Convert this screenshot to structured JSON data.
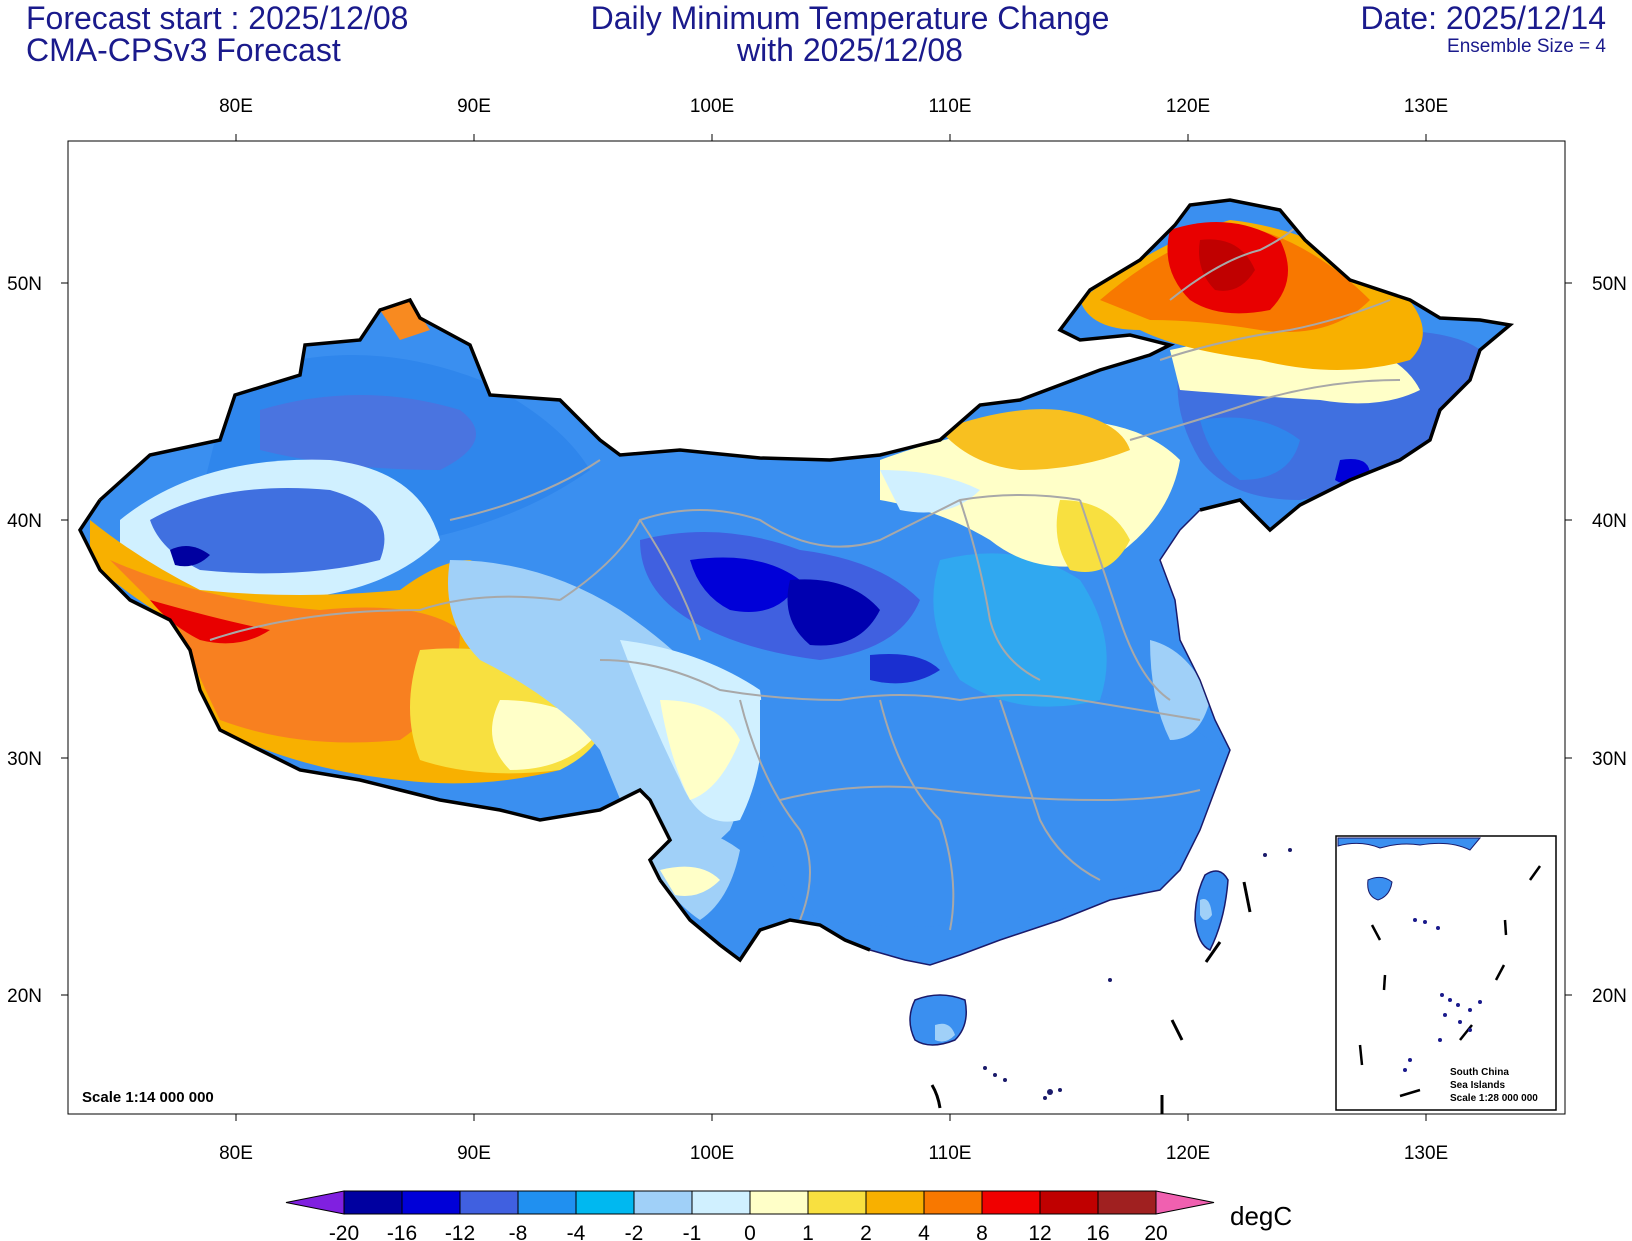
{
  "header": {
    "forecast_start": "Forecast start : 2025/12/08",
    "model": "CMA-CPSv3 Forecast",
    "title_line1": "Daily Minimum Temperature Change",
    "title_line2": "with 2025/12/08",
    "date": "Date: 2025/12/14",
    "ensemble": "Ensemble Size = 4"
  },
  "map": {
    "lon_labels": [
      "80E",
      "90E",
      "100E",
      "110E",
      "120E",
      "130E"
    ],
    "lat_labels": [
      "50N",
      "40N",
      "30N",
      "20N"
    ],
    "scale_label": "Scale 1:14 000 000",
    "inset": {
      "line1": "South China",
      "line2": "Sea Islands",
      "line3": "Scale 1:28 000 000"
    }
  },
  "colorbar": {
    "unit": "degC",
    "tick_labels": [
      "-20",
      "-16",
      "-12",
      "-8",
      "-4",
      "-2",
      "-1",
      "0",
      "1",
      "2",
      "4",
      "8",
      "12",
      "16",
      "20"
    ],
    "colors": [
      "#0000a0",
      "#0000d8",
      "#4060e0",
      "#2090f0",
      "#00b8f0",
      "#a0d0f8",
      "#d0f0ff",
      "#ffffc8",
      "#f8e040",
      "#f8b000",
      "#f87800",
      "#f00000",
      "#c00000",
      "#a02020"
    ],
    "low_color": "#8020e0",
    "high_color": "#f060b0"
  }
}
